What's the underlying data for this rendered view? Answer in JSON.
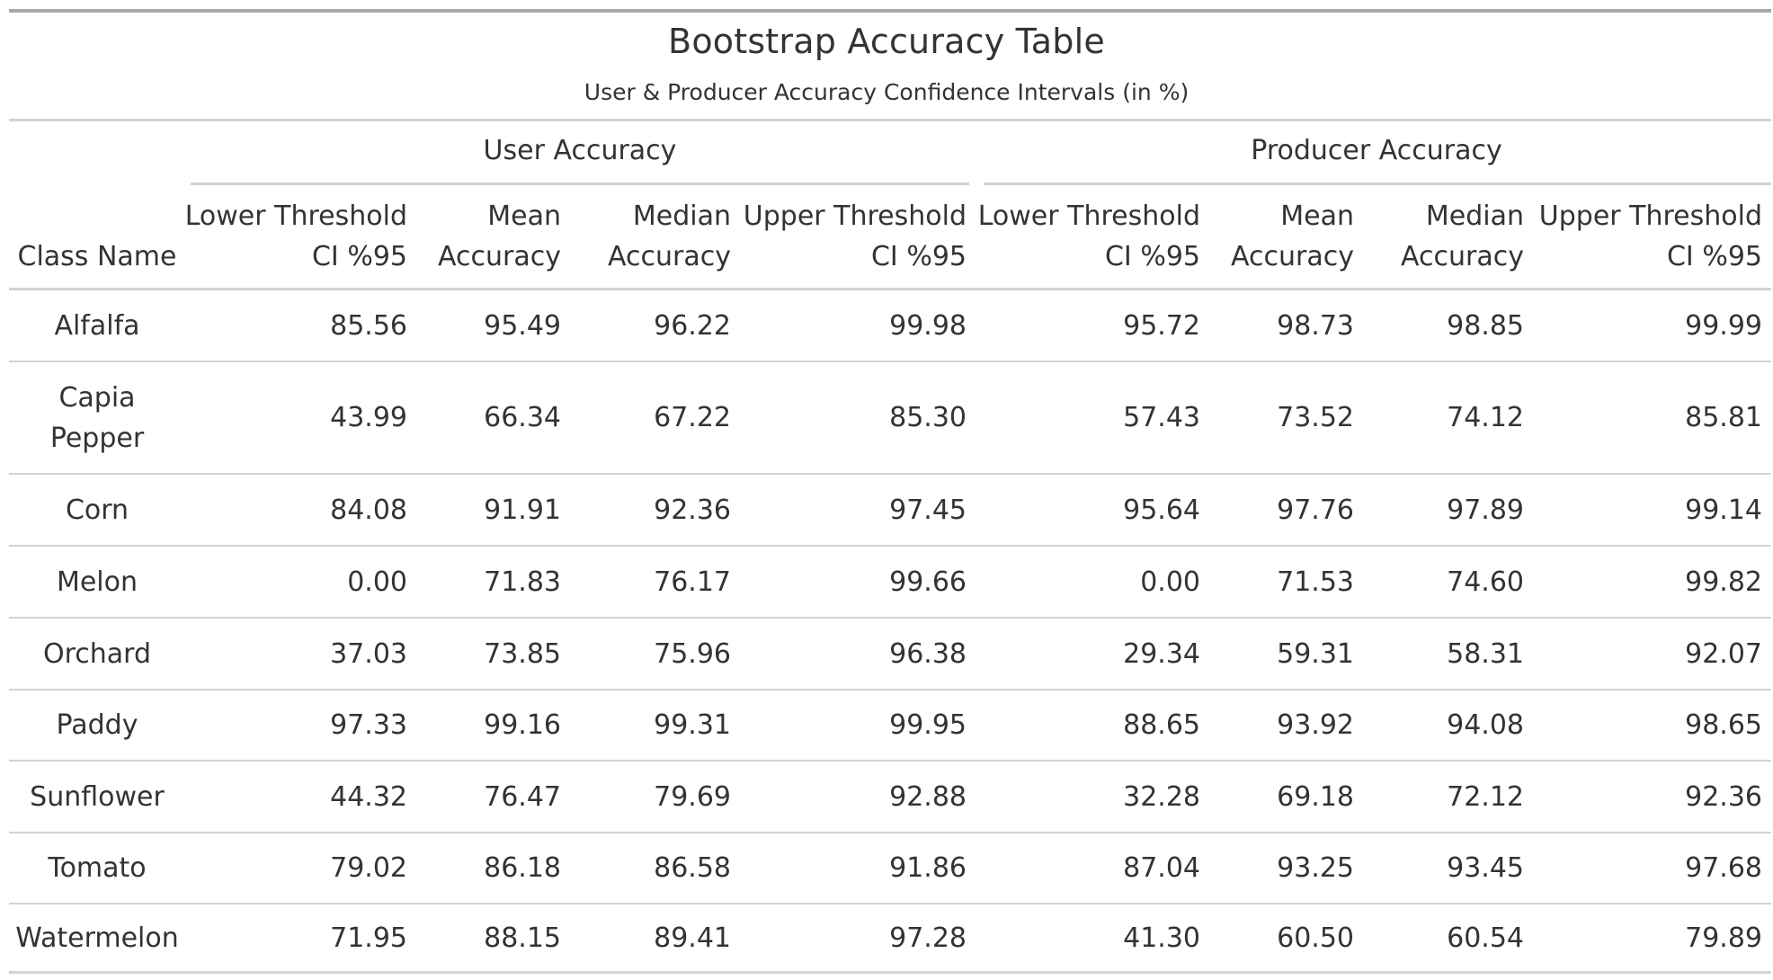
{
  "table": {
    "title": "Bootstrap Accuracy Table",
    "subtitle": "User & Producer Accuracy Confidence Intervals (in %)",
    "spanners": {
      "user": "User Accuracy",
      "producer": "Producer Accuracy"
    },
    "class_header": "Class Name",
    "column_headers": [
      {
        "line1": "Lower Threshold",
        "line2": "CI %95"
      },
      {
        "line1": "Mean",
        "line2": "Accuracy"
      },
      {
        "line1": "Median",
        "line2": "Accuracy"
      },
      {
        "line1": "Upper Threshold",
        "line2": "CI %95"
      },
      {
        "line1": "Lower Threshold",
        "line2": "CI %95"
      },
      {
        "line1": "Mean",
        "line2": "Accuracy"
      },
      {
        "line1": "Median",
        "line2": "Accuracy"
      },
      {
        "line1": "Upper Threshold",
        "line2": "CI %95"
      }
    ],
    "rows": [
      {
        "name_lines": [
          "Alfalfa"
        ],
        "values": [
          "85.56",
          "95.49",
          "96.22",
          "99.98",
          "95.72",
          "98.73",
          "98.85",
          "99.99"
        ]
      },
      {
        "name_lines": [
          "Capia",
          "Pepper"
        ],
        "values": [
          "43.99",
          "66.34",
          "67.22",
          "85.30",
          "57.43",
          "73.52",
          "74.12",
          "85.81"
        ]
      },
      {
        "name_lines": [
          "Corn"
        ],
        "values": [
          "84.08",
          "91.91",
          "92.36",
          "97.45",
          "95.64",
          "97.76",
          "97.89",
          "99.14"
        ]
      },
      {
        "name_lines": [
          "Melon"
        ],
        "values": [
          "0.00",
          "71.83",
          "76.17",
          "99.66",
          "0.00",
          "71.53",
          "74.60",
          "99.82"
        ]
      },
      {
        "name_lines": [
          "Orchard"
        ],
        "values": [
          "37.03",
          "73.85",
          "75.96",
          "96.38",
          "29.34",
          "59.31",
          "58.31",
          "92.07"
        ]
      },
      {
        "name_lines": [
          "Paddy"
        ],
        "values": [
          "97.33",
          "99.16",
          "99.31",
          "99.95",
          "88.65",
          "93.92",
          "94.08",
          "98.65"
        ]
      },
      {
        "name_lines": [
          "Sunflower"
        ],
        "values": [
          "44.32",
          "76.47",
          "79.69",
          "92.88",
          "32.28",
          "69.18",
          "72.12",
          "92.36"
        ]
      },
      {
        "name_lines": [
          "Tomato"
        ],
        "values": [
          "79.02",
          "86.18",
          "86.58",
          "91.86",
          "87.04",
          "93.25",
          "93.45",
          "97.68"
        ]
      },
      {
        "name_lines": [
          "Watermelon"
        ],
        "values": [
          "71.95",
          "88.15",
          "89.41",
          "97.28",
          "41.30",
          "60.50",
          "60.54",
          "79.89"
        ]
      }
    ]
  }
}
